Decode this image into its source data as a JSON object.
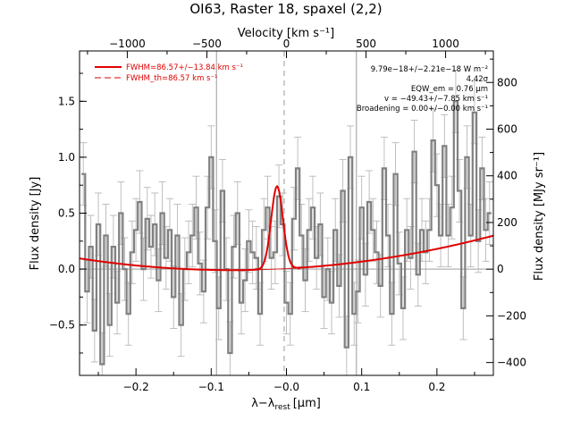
{
  "title": "OI63, Raster 18, spaxel (2,2)",
  "colors": {
    "spectrum": "#808080",
    "fit": "#e00000",
    "reference_lines": "#9a9a9a",
    "axes": "#000000"
  },
  "chart_data": {
    "type": "line",
    "title": "OI63, Raster 18, spaxel (2,2)",
    "xlabel": "λ−λ_rest [μm]",
    "xlabel_main": "λ−λ",
    "xlabel_sub": "rest",
    "xlabel_unit": "[μm]",
    "ylabel": "Flux density [Jy]",
    "top_axis_label": "Velocity [km s⁻¹]",
    "right_axis_label": "Flux density [MJy sr⁻¹]",
    "xlim": [
      -0.275,
      0.275
    ],
    "ylim": [
      -0.95,
      1.95
    ],
    "top_xlim": [
      -1300,
      1300
    ],
    "right_ylim": [
      -455,
      935
    ],
    "x_ticks": [
      -0.2,
      -0.1,
      0.0,
      0.1,
      0.2
    ],
    "x_tick_labels": [
      "−0.2",
      "−0.1",
      "−0.0",
      "0.1",
      "0.2"
    ],
    "y_ticks": [
      -0.5,
      0.0,
      0.5,
      1.0,
      1.5
    ],
    "y_tick_labels": [
      "−0.5",
      "0.0",
      "0.5",
      "1.0",
      "1.5"
    ],
    "top_ticks": [
      -1000,
      -500,
      0,
      500,
      1000
    ],
    "top_tick_labels": [
      "−1000",
      "−500",
      "0",
      "500",
      "1000"
    ],
    "right_ticks": [
      -400,
      -200,
      0,
      200,
      400,
      600,
      800
    ],
    "right_tick_labels": [
      "−400",
      "−200",
      "0",
      "200",
      "400",
      "600",
      "800"
    ],
    "vertical_lines": [
      -0.093,
      0.093
    ],
    "dashed_vertical_line": -0.003,
    "legend": [
      {
        "label": "FWHM=86.57+/−13.84 km s⁻¹",
        "style": "solid"
      },
      {
        "label": "FWHM_th=86.57 km s⁻¹",
        "style": "dashed"
      }
    ],
    "annotations": [
      "9.79e−18+/−2.21e−18 W m⁻²",
      "4.42σ",
      "EQW_em = 0.76 μm",
      "v = −49.43+/−7.85 km s⁻¹",
      "Broadening = 0.00+/−0.00 km s⁻¹"
    ],
    "series": [
      {
        "style": "histogram-step with error bars",
        "x": [
          -0.27,
          -0.265,
          -0.26,
          -0.255,
          -0.25,
          -0.245,
          -0.24,
          -0.235,
          -0.23,
          -0.225,
          -0.22,
          -0.215,
          -0.21,
          -0.205,
          -0.2,
          -0.195,
          -0.19,
          -0.185,
          -0.18,
          -0.175,
          -0.17,
          -0.165,
          -0.16,
          -0.155,
          -0.15,
          -0.145,
          -0.14,
          -0.135,
          -0.13,
          -0.125,
          -0.12,
          -0.115,
          -0.11,
          -0.105,
          -0.1,
          -0.095,
          -0.09,
          -0.085,
          -0.08,
          -0.075,
          -0.07,
          -0.065,
          -0.06,
          -0.055,
          -0.05,
          -0.045,
          -0.04,
          -0.035,
          -0.03,
          -0.025,
          -0.02,
          -0.015,
          -0.01,
          -0.005,
          0.0,
          0.005,
          0.01,
          0.015,
          0.02,
          0.025,
          0.03,
          0.035,
          0.04,
          0.045,
          0.05,
          0.055,
          0.06,
          0.065,
          0.07,
          0.075,
          0.08,
          0.085,
          0.09,
          0.095,
          0.1,
          0.105,
          0.11,
          0.115,
          0.12,
          0.125,
          0.13,
          0.135,
          0.14,
          0.145,
          0.15,
          0.155,
          0.16,
          0.165,
          0.17,
          0.175,
          0.18,
          0.185,
          0.19,
          0.195,
          0.2,
          0.205,
          0.21,
          0.215,
          0.22,
          0.225,
          0.23,
          0.235,
          0.24,
          0.245,
          0.25,
          0.255,
          0.26,
          0.265,
          0.27
        ],
        "y": [
          0.85,
          -0.2,
          0.2,
          -0.55,
          0.4,
          -0.85,
          0.3,
          -0.5,
          0.2,
          -0.3,
          0.5,
          0.0,
          -0.4,
          0.15,
          0.35,
          0.6,
          0.0,
          0.45,
          0.2,
          0.4,
          -0.1,
          0.5,
          0.1,
          0.35,
          -0.25,
          0.3,
          -0.5,
          0.0,
          0.15,
          0.3,
          0.55,
          0.05,
          -0.2,
          0.55,
          1.0,
          0.25,
          -0.35,
          0.7,
          0.0,
          -0.75,
          0.2,
          0.5,
          -0.3,
          -0.1,
          0.25,
          0.15,
          0.1,
          -0.4,
          0.35,
          0.55,
          0.1,
          0.15,
          0.65,
          0.4,
          -0.3,
          -0.4,
          0.45,
          0.9,
          0.3,
          -0.1,
          0.35,
          0.55,
          0.1,
          0.4,
          -0.25,
          0.0,
          -0.3,
          0.35,
          -0.15,
          0.7,
          -0.7,
          1.0,
          -0.4,
          -0.2,
          0.55,
          -0.05,
          0.6,
          0.35,
          0.15,
          -0.15,
          0.9,
          0.3,
          -0.4,
          0.85,
          0.05,
          -0.35,
          0.35,
          0.1,
          1.05,
          -0.05,
          0.35,
          0.15,
          0.35,
          1.15,
          0.75,
          0.3,
          1.1,
          0.3,
          0.55,
          1.5,
          0.7,
          -0.35,
          1.0,
          0.3,
          1.4,
          0.25,
          0.9,
          0.35,
          0.5
        ],
        "error": 0.28
      },
      {
        "name": "FWHM=86.57+/−13.84 km s⁻¹",
        "style": "fit: quadratic continuum + gaussian",
        "continuum_poly": [
          0.0045,
          0.37,
          2.55
        ],
        "gaussian": {
          "amplitude": 0.74,
          "center": -0.0125,
          "fwhm": 0.0184
        }
      }
    ]
  }
}
